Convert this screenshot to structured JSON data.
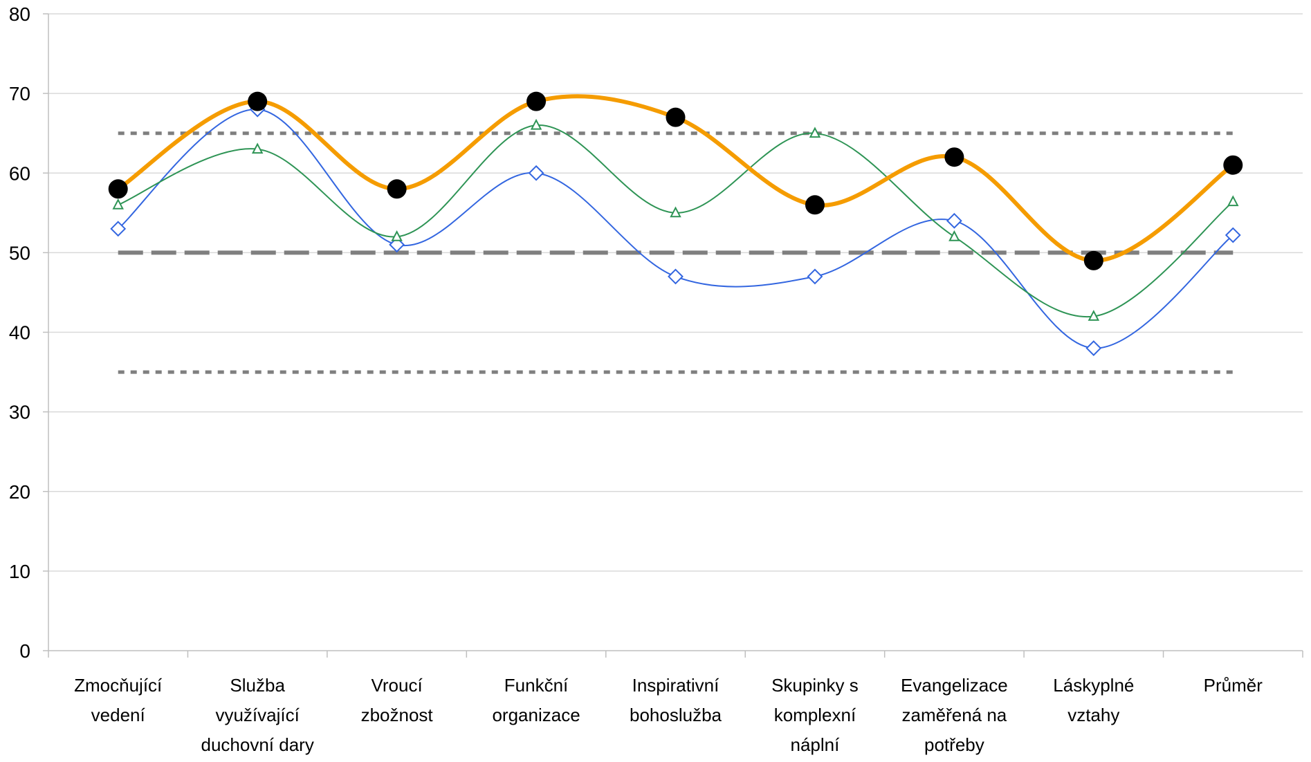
{
  "chart_data": {
    "type": "line",
    "categories": [
      [
        "Zmocňující",
        "vedení"
      ],
      [
        "Služba",
        "využívající",
        "duchovní dary"
      ],
      [
        "Vroucí",
        "zbožnost"
      ],
      [
        "Funkční",
        "organizace"
      ],
      [
        "Inspirativní",
        "bohoslužba"
      ],
      [
        "Skupinky s",
        "komplexní",
        "náplní"
      ],
      [
        "Evangelizace",
        "zaměřená na",
        "potřeby"
      ],
      [
        "Láskyplné",
        "vztahy"
      ],
      [
        "Průměr"
      ]
    ],
    "yticks": [
      "0",
      "10",
      "20",
      "30",
      "40",
      "50",
      "60",
      "70",
      "80"
    ],
    "ylim": [
      0,
      80
    ],
    "grid": true,
    "legend": "none",
    "series": [
      {
        "values": [
          58,
          69,
          58,
          69,
          67,
          56,
          62,
          49,
          61
        ],
        "color": "#f59c00",
        "marker": "circle",
        "line_style": "thick-smooth"
      },
      {
        "values": [
          56,
          63,
          52,
          66,
          55,
          65,
          52,
          42,
          56.4
        ],
        "color": "#2e9455",
        "marker": "triangle-open",
        "line_style": "thin-smooth"
      },
      {
        "values": [
          53,
          68,
          51,
          60,
          47,
          47,
          54,
          38,
          52.2
        ],
        "color": "#3366e0",
        "marker": "diamond-open",
        "line_style": "thin-smooth"
      }
    ],
    "reference_lines": [
      {
        "value": 65,
        "style": "dotted",
        "color": "#7f7f7f"
      },
      {
        "value": 50,
        "style": "dashed",
        "color": "#7f7f7f"
      },
      {
        "value": 35,
        "style": "dotted",
        "color": "#7f7f7f"
      }
    ]
  }
}
